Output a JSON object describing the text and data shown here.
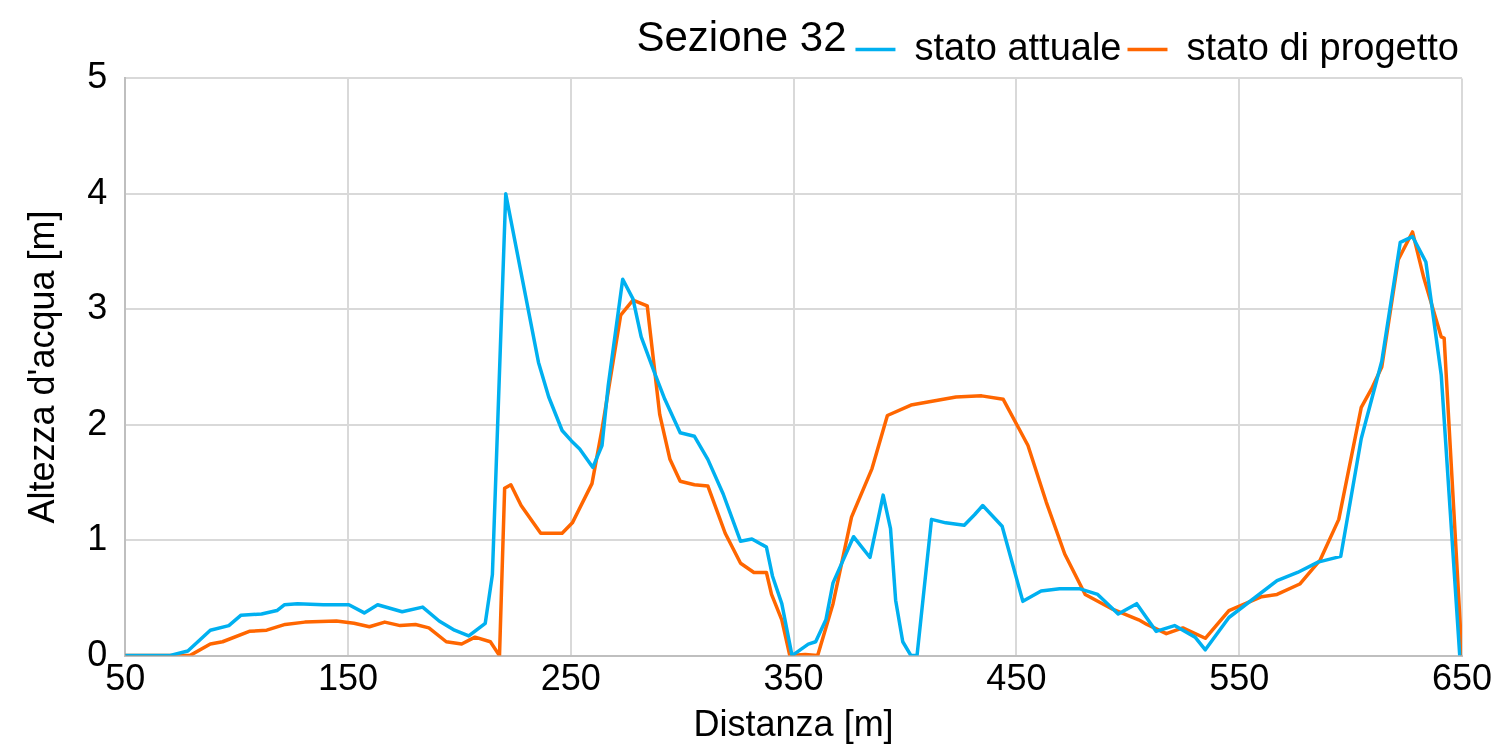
{
  "chart_data": {
    "type": "line",
    "title": "Sezione 32",
    "xlabel": "Distanza [m]",
    "ylabel": "Altezza d'acqua [m]",
    "xlim": [
      50,
      650
    ],
    "xticks": [
      50,
      150,
      250,
      350,
      450,
      550,
      650
    ],
    "ylim": [
      0,
      5
    ],
    "yticks": [
      0,
      1,
      2,
      3,
      4,
      5
    ],
    "grid": true,
    "legend": "top right",
    "marker": "none",
    "line_style": "solid",
    "series": [
      {
        "name": "stato attuale",
        "color": "#00b0f0",
        "x": [
          50,
          69.8,
          78.1,
          88.2,
          96.5,
          102,
          111.2,
          118.1,
          121.4,
          127.3,
          138.9,
          150.4,
          157.3,
          163.3,
          174.3,
          183.5,
          190.9,
          197.8,
          204.2,
          211.6,
          214.8,
          220.8,
          235.5,
          240.1,
          246.1,
          250.3,
          254,
          259.9,
          264,
          266.8,
          273.3,
          277.9,
          281.6,
          287.6,
          292.2,
          299.1,
          305.5,
          311.5,
          318.4,
          326.2,
          331.3,
          337.8,
          340.5,
          344.7,
          349.3,
          356.6,
          359.9,
          364.5,
          367.7,
          376.9,
          384.3,
          390.2,
          393.5,
          395.8,
          399,
          402.7,
          405.4,
          411.9,
          418.3,
          426.6,
          431.2,
          434.9,
          443.6,
          452.9,
          461.1,
          469.4,
          478.2,
          486.5,
          495.7,
          504,
          512.7,
          521,
          530.2,
          534.8,
          545.4,
          567,
          576.2,
          585.4,
          595.6,
          604.8,
          614,
          622.3,
          627.8,
          633.8,
          640.7,
          649
        ],
        "values": [
          0,
          0,
          0.04,
          0.22,
          0.26,
          0.35,
          0.36,
          0.39,
          0.44,
          0.45,
          0.44,
          0.44,
          0.37,
          0.44,
          0.38,
          0.42,
          0.3,
          0.22,
          0.17,
          0.28,
          0.7,
          4.0,
          2.54,
          2.24,
          1.95,
          1.86,
          1.79,
          1.63,
          1.82,
          2.34,
          3.26,
          3.09,
          2.76,
          2.45,
          2.22,
          1.93,
          1.9,
          1.7,
          1.4,
          0.99,
          1.01,
          0.94,
          0.69,
          0.45,
          0,
          0.1,
          0.12,
          0.31,
          0.63,
          1.03,
          0.85,
          1.39,
          1.1,
          0.48,
          0.12,
          0,
          0,
          1.18,
          1.15,
          1.13,
          1.22,
          1.3,
          1.12,
          0.47,
          0.56,
          0.58,
          0.58,
          0.53,
          0.36,
          0.45,
          0.21,
          0.26,
          0.16,
          0.05,
          0.33,
          0.65,
          0.72,
          0.81,
          0.86,
          1.88,
          2.55,
          3.58,
          3.63,
          3.41,
          2.43,
          0
        ]
      },
      {
        "name": "stato di progetto",
        "color": "#ff6600",
        "x": [
          50,
          79,
          88.2,
          93.7,
          105.7,
          113.5,
          121.8,
          130.6,
          144.8,
          152.7,
          159.6,
          166.5,
          173.4,
          180.3,
          186.3,
          194.1,
          201,
          207,
          213.9,
          218,
          220.3,
          223.1,
          227.7,
          236.5,
          246.1,
          250.7,
          259.5,
          264.1,
          272.4,
          277.9,
          284.3,
          289.9,
          294.5,
          299.1,
          305.5,
          311.5,
          319.3,
          326.2,
          332.2,
          337.8,
          340.1,
          344.7,
          348.3,
          355.2,
          360.8,
          367.7,
          376,
          385.2,
          392.1,
          402.7,
          422.9,
          434.4,
          444.1,
          455.2,
          463.4,
          471.7,
          480.9,
          493.4,
          504.9,
          508.6,
          517.3,
          524.7,
          534.8,
          545.4,
          560.1,
          567,
          577.2,
          586.4,
          594.7,
          604.8,
          609.4,
          614,
          621.4,
          627.8,
          632.9,
          640.7,
          642,
          650
        ],
        "values": [
          0,
          0,
          0.1,
          0.12,
          0.21,
          0.22,
          0.27,
          0.29,
          0.3,
          0.28,
          0.25,
          0.29,
          0.26,
          0.27,
          0.24,
          0.12,
          0.1,
          0.16,
          0.12,
          0,
          1.45,
          1.48,
          1.3,
          1.06,
          1.06,
          1.15,
          1.49,
          1.97,
          2.95,
          3.08,
          3.03,
          2.09,
          1.7,
          1.51,
          1.48,
          1.47,
          1.06,
          0.8,
          0.72,
          0.72,
          0.53,
          0.31,
          0,
          0.01,
          0,
          0.45,
          1.2,
          1.62,
          2.08,
          2.17,
          2.24,
          2.25,
          2.22,
          1.82,
          1.33,
          0.88,
          0.53,
          0.4,
          0.31,
          0.27,
          0.19,
          0.24,
          0.15,
          0.39,
          0.51,
          0.53,
          0.62,
          0.83,
          1.18,
          2.15,
          2.31,
          2.5,
          3.43,
          3.67,
          3.27,
          2.76,
          2.75,
          0
        ]
      }
    ]
  }
}
